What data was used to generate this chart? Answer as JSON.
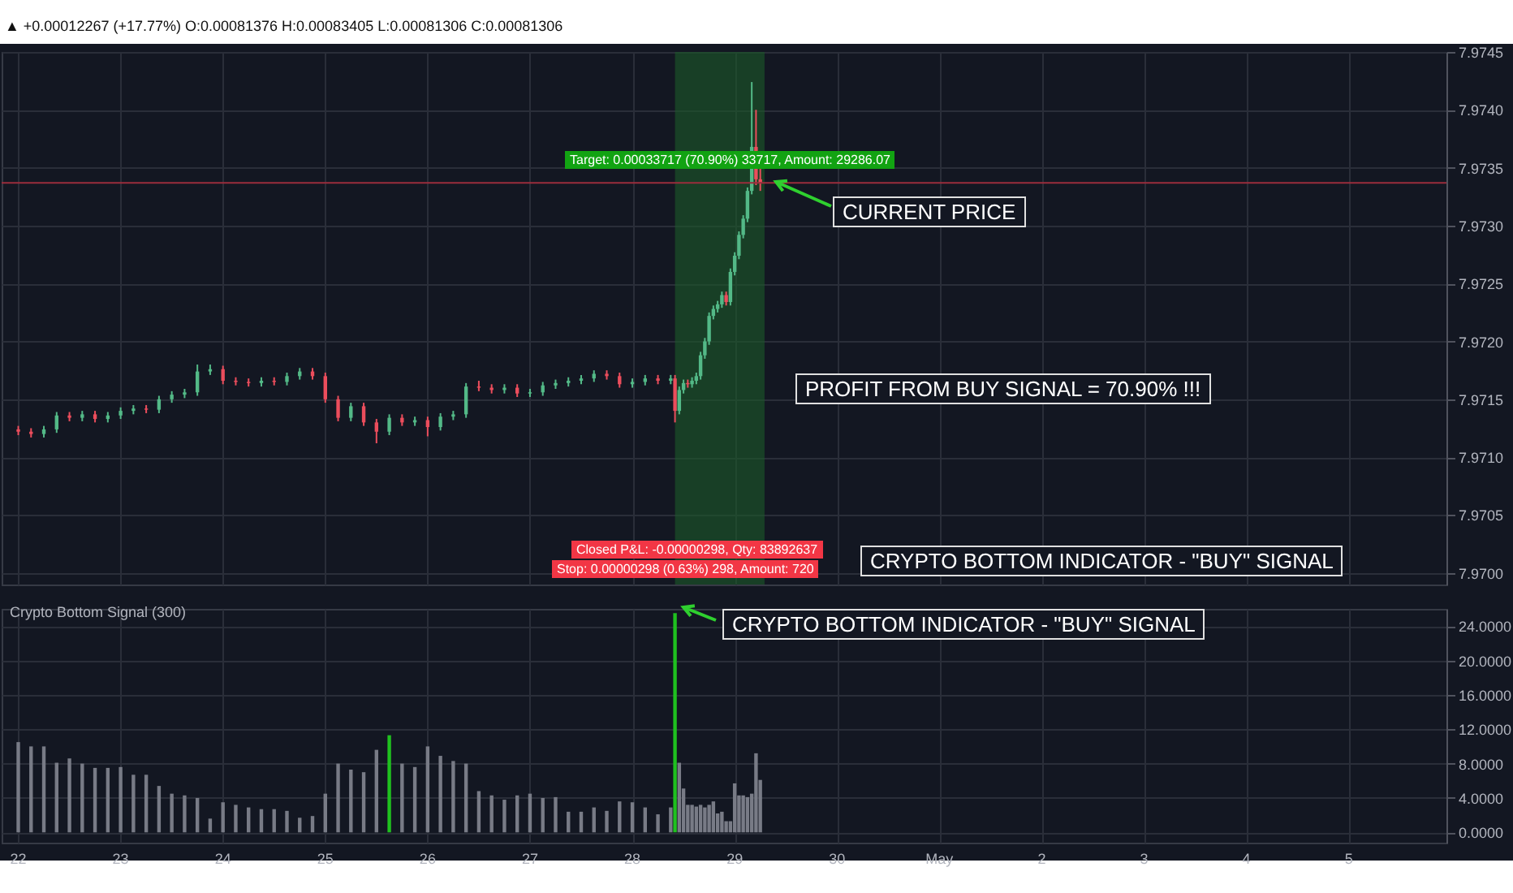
{
  "chart_data": [
    {
      "type": "candlestick",
      "subtitle": "▲ +0.00012267 (+17.77%) O:0.00081376 H:0.00083405 L:0.00081306 C:0.00081306",
      "x": [
        "--04-22T00:00",
        "--04-22T03:00",
        "--04-22T06:00",
        "--04-22T09:00",
        "--04-22T12:00",
        "--04-22T15:00",
        "--04-22T18:00",
        "--04-22T21:00",
        "--04-23T00:00",
        "--04-23T03:00",
        "--04-23T06:00",
        "--04-23T09:00",
        "--04-23T12:00",
        "--04-23T15:00",
        "--04-23T18:00",
        "--04-23T21:00",
        "--04-24T00:00",
        "--04-24T03:00",
        "--04-24T06:00",
        "--04-24T09:00",
        "--04-24T12:00",
        "--04-24T15:00",
        "--04-24T18:00",
        "--04-24T21:00",
        "--04-25T00:00",
        "--04-25T03:00",
        "--04-25T06:00",
        "--04-25T09:00",
        "--04-25T12:00",
        "--04-25T15:00",
        "--04-25T18:00",
        "--04-25T21:00",
        "--04-26T00:00",
        "--04-26T03:00",
        "--04-26T06:00",
        "--04-26T09:00",
        "--04-26T12:00",
        "--04-26T15:00",
        "--04-26T18:00",
        "--04-26T21:00",
        "--04-27T00:00",
        "--04-27T03:00",
        "--04-27T06:00",
        "--04-27T09:00",
        "--04-27T12:00",
        "--04-27T15:00",
        "--04-27T18:00",
        "--04-27T21:00",
        "--04-28T00:00",
        "--04-28T03:00",
        "--04-28T06:00",
        "--04-28T09:00",
        "--04-28T10:00",
        "--04-28T11:00",
        "--04-28T12:00",
        "--04-28T13:00",
        "--04-28T14:00",
        "--04-28T15:00",
        "--04-28T16:00",
        "--04-28T17:00",
        "--04-28T18:00",
        "--04-28T19:00",
        "--04-28T20:00",
        "--04-28T21:00",
        "--04-28T22:00",
        "--04-28T23:00",
        "--04-29T00:00",
        "--04-29T01:00",
        "--04-29T02:00",
        "--04-29T03:00",
        "--04-29T04:00",
        "--04-29T05:00",
        "--04-29T06:00"
      ],
      "ohlc": [
        [
          7.97124,
          7.97127,
          7.97119,
          7.97122
        ],
        [
          7.97122,
          7.97125,
          7.97117,
          7.9712
        ],
        [
          7.9712,
          7.97127,
          7.97117,
          7.97124
        ],
        [
          7.97124,
          7.97139,
          7.97121,
          7.97136
        ],
        [
          7.97136,
          7.97139,
          7.97131,
          7.97134
        ],
        [
          7.97134,
          7.9714,
          7.97131,
          7.97137
        ],
        [
          7.97137,
          7.9714,
          7.9713,
          7.97133
        ],
        [
          7.97133,
          7.97139,
          7.9713,
          7.97136
        ],
        [
          7.97136,
          7.97143,
          7.97133,
          7.9714
        ],
        [
          7.9714,
          7.97145,
          7.97137,
          7.97142
        ],
        [
          7.97142,
          7.97145,
          7.97138,
          7.97141
        ],
        [
          7.97141,
          7.97153,
          7.97138,
          7.9715
        ],
        [
          7.9715,
          7.97157,
          7.97147,
          7.97154
        ],
        [
          7.97154,
          7.97159,
          7.97151,
          7.97156
        ],
        [
          7.97156,
          7.9718,
          7.97153,
          7.97174
        ],
        [
          7.97174,
          7.9718,
          7.97171,
          7.97176
        ],
        [
          7.97176,
          7.97179,
          7.97163,
          7.97166
        ],
        [
          7.97166,
          7.97169,
          7.97162,
          7.97165
        ],
        [
          7.97165,
          7.97168,
          7.97161,
          7.97164
        ],
        [
          7.97164,
          7.97169,
          7.97161,
          7.97166
        ],
        [
          7.97166,
          7.97169,
          7.97162,
          7.97165
        ],
        [
          7.97165,
          7.97173,
          7.97162,
          7.9717
        ],
        [
          7.9717,
          7.97177,
          7.97167,
          7.97174
        ],
        [
          7.97174,
          7.97177,
          7.97167,
          7.9717
        ],
        [
          7.9717,
          7.97173,
          7.97147,
          7.9715
        ],
        [
          7.9715,
          7.97153,
          7.97131,
          7.97134
        ],
        [
          7.97134,
          7.97147,
          7.97131,
          7.97144
        ],
        [
          7.97144,
          7.97147,
          7.97127,
          7.9713
        ],
        [
          7.9713,
          7.97133,
          7.97112,
          7.97122
        ],
        [
          7.97122,
          7.97137,
          7.97119,
          7.97134
        ],
        [
          7.97134,
          7.97137,
          7.97127,
          7.9713
        ],
        [
          7.9713,
          7.97135,
          7.97127,
          7.97132
        ],
        [
          7.97132,
          7.97135,
          7.97118,
          7.97126
        ],
        [
          7.97126,
          7.97138,
          7.97123,
          7.97135
        ],
        [
          7.97135,
          7.9714,
          7.97132,
          7.97137
        ],
        [
          7.97137,
          7.97164,
          7.97134,
          7.97161
        ],
        [
          7.97161,
          7.97166,
          7.97157,
          7.9716
        ],
        [
          7.9716,
          7.97163,
          7.97155,
          7.97158
        ],
        [
          7.97158,
          7.97163,
          7.97155,
          7.9716
        ],
        [
          7.9716,
          7.97163,
          7.97152,
          7.97155
        ],
        [
          7.97155,
          7.97159,
          7.97152,
          7.97156
        ],
        [
          7.97156,
          7.97165,
          7.97153,
          7.97162
        ],
        [
          7.97162,
          7.97167,
          7.97159,
          7.97164
        ],
        [
          7.97164,
          7.97169,
          7.97161,
          7.97166
        ],
        [
          7.97166,
          7.97171,
          7.97163,
          7.97168
        ],
        [
          7.97168,
          7.97175,
          7.97165,
          7.97172
        ],
        [
          7.97172,
          7.97175,
          7.97167,
          7.9717
        ],
        [
          7.9717,
          7.97173,
          7.9716,
          7.97163
        ],
        [
          7.97163,
          7.97168,
          7.9716,
          7.97165
        ],
        [
          7.97165,
          7.97171,
          7.97162,
          7.97168
        ],
        [
          7.97168,
          7.97171,
          7.97163,
          7.97166
        ],
        [
          7.97166,
          7.97171,
          7.97163,
          7.97168
        ],
        [
          7.97168,
          7.97171,
          7.9713,
          7.9714
        ],
        [
          7.9714,
          7.97161,
          7.97137,
          7.97158
        ],
        [
          7.97158,
          7.97167,
          7.97155,
          7.97164
        ],
        [
          7.97164,
          7.97167,
          7.9716,
          7.97163
        ],
        [
          7.97163,
          7.97169,
          7.9716,
          7.97166
        ],
        [
          7.97166,
          7.97173,
          7.97163,
          7.9717
        ],
        [
          7.9717,
          7.97191,
          7.97167,
          7.97188
        ],
        [
          7.97188,
          7.97203,
          7.97185,
          7.972
        ],
        [
          7.972,
          7.97225,
          7.97197,
          7.97222
        ],
        [
          7.97222,
          7.97231,
          7.97219,
          7.97228
        ],
        [
          7.97228,
          7.97235,
          7.97225,
          7.97232
        ],
        [
          7.97232,
          7.97243,
          7.97229,
          7.9724
        ],
        [
          7.9724,
          7.97243,
          7.97231,
          7.97234
        ],
        [
          7.97234,
          7.97263,
          7.97231,
          7.9726
        ],
        [
          7.9726,
          7.97277,
          7.97257,
          7.97274
        ],
        [
          7.97274,
          7.97295,
          7.97271,
          7.97292
        ],
        [
          7.97292,
          7.97309,
          7.97289,
          7.97306
        ],
        [
          7.97306,
          7.97333,
          7.97303,
          7.9733
        ],
        [
          7.9733,
          7.97424,
          7.97327,
          7.97368
        ],
        [
          7.97368,
          7.974,
          7.97335,
          7.9734
        ],
        [
          7.9734,
          7.97352,
          7.9733,
          7.97337
        ]
      ],
      "colors": [
        "#eb4d5c",
        "#eb4d5c",
        "#53b987",
        "#53b987",
        "#eb4d5c",
        "#53b987",
        "#eb4d5c",
        "#53b987",
        "#53b987",
        "#53b987",
        "#eb4d5c",
        "#53b987",
        "#53b987",
        "#53b987",
        "#53b987",
        "#53b987",
        "#eb4d5c",
        "#eb4d5c",
        "#eb4d5c",
        "#53b987",
        "#eb4d5c",
        "#53b987",
        "#53b987",
        "#eb4d5c",
        "#eb4d5c",
        "#eb4d5c",
        "#53b987",
        "#eb4d5c",
        "#eb4d5c",
        "#53b987",
        "#eb4d5c",
        "#53b987",
        "#eb4d5c",
        "#53b987",
        "#53b987",
        "#53b987",
        "#eb4d5c",
        "#eb4d5c",
        "#53b987",
        "#eb4d5c",
        "#53b987",
        "#53b987",
        "#53b987",
        "#53b987",
        "#53b987",
        "#53b987",
        "#eb4d5c",
        "#eb4d5c",
        "#53b987",
        "#53b987",
        "#eb4d5c",
        "#53b987",
        "#eb4d5c",
        "#53b987",
        "#53b987",
        "#eb4d5c",
        "#53b987",
        "#53b987",
        "#53b987",
        "#53b987",
        "#53b987",
        "#53b987",
        "#53b987",
        "#53b987",
        "#eb4d5c",
        "#53b987",
        "#53b987",
        "#53b987",
        "#53b987",
        "#53b987",
        "#53b987",
        "#eb4d5c",
        "#eb4d5c"
      ],
      "xlim": [
        "--04-21T22:00",
        "--05-05T21:00"
      ],
      "xticks": [
        {
          "value": "--04-22",
          "label": "22"
        },
        {
          "value": "--04-23",
          "label": "23"
        },
        {
          "value": "--04-24",
          "label": "24"
        },
        {
          "value": "--04-25",
          "label": "25"
        },
        {
          "value": "--04-26",
          "label": "26"
        },
        {
          "value": "--04-27",
          "label": "27"
        },
        {
          "value": "--04-28",
          "label": "28"
        },
        {
          "value": "--04-29",
          "label": "29"
        },
        {
          "value": "--04-30",
          "label": "30"
        },
        {
          "value": "--05-01",
          "label": "May"
        },
        {
          "value": "--05-02",
          "label": "2"
        },
        {
          "value": "--05-03",
          "label": "3"
        },
        {
          "value": "--05-04",
          "label": "4"
        },
        {
          "value": "--05-05",
          "label": "5"
        }
      ],
      "ylim": [
        7.9699,
        7.9745
      ],
      "yticks": [
        {
          "value": 7.97,
          "label": "7.9700"
        },
        {
          "value": 7.9705,
          "label": "7.9705"
        },
        {
          "value": 7.971,
          "label": "7.9710"
        },
        {
          "value": 7.9715,
          "label": "7.9715"
        },
        {
          "value": 7.972,
          "label": "7.9720"
        },
        {
          "value": 7.9725,
          "label": "7.9725"
        },
        {
          "value": 7.973,
          "label": "7.9730"
        },
        {
          "value": 7.9735,
          "label": "7.9735"
        },
        {
          "value": 7.974,
          "label": "7.9740"
        },
        {
          "value": 7.9745,
          "label": "7.9745"
        }
      ],
      "grid": true,
      "tick_labels": "y",
      "bands": [
        {
          "axis": "x",
          "from": "--04-28T10:00",
          "to": "--04-29T07:00",
          "color": "#1d5a2a"
        }
      ],
      "ref_lines": [
        {
          "axis": "y",
          "value": 7.97337,
          "color": "#9b2d3c"
        }
      ],
      "annotations": [
        "Target: 0.00033717 (70.90%) 33717, Amount: 29286.07",
        "CURRENT PRICE",
        "PROFIT FROM BUY SIGNAL = 70.90% !!!",
        "Closed P&L: -0.00000298, Qty: 83892637",
        "Stop: 0.00000298 (0.63%) 298, Amount: 720",
        "CRYPTO BOTTOM INDICATOR - \"BUY\" SIGNAL"
      ]
    },
    {
      "type": "bar",
      "title": "Crypto Bottom Signal (300)",
      "x": [
        "--04-22T00:00",
        "--04-22T03:00",
        "--04-22T06:00",
        "--04-22T09:00",
        "--04-22T12:00",
        "--04-22T15:00",
        "--04-22T18:00",
        "--04-22T21:00",
        "--04-23T00:00",
        "--04-23T03:00",
        "--04-23T06:00",
        "--04-23T09:00",
        "--04-23T12:00",
        "--04-23T15:00",
        "--04-23T18:00",
        "--04-23T21:00",
        "--04-24T00:00",
        "--04-24T03:00",
        "--04-24T06:00",
        "--04-24T09:00",
        "--04-24T12:00",
        "--04-24T15:00",
        "--04-24T18:00",
        "--04-24T21:00",
        "--04-25T00:00",
        "--04-25T03:00",
        "--04-25T06:00",
        "--04-25T09:00",
        "--04-25T12:00",
        "--04-25T15:00",
        "--04-25T18:00",
        "--04-25T21:00",
        "--04-26T00:00",
        "--04-26T03:00",
        "--04-26T06:00",
        "--04-26T09:00",
        "--04-26T12:00",
        "--04-26T15:00",
        "--04-26T18:00",
        "--04-26T21:00",
        "--04-27T00:00",
        "--04-27T03:00",
        "--04-27T06:00",
        "--04-27T09:00",
        "--04-27T12:00",
        "--04-27T15:00",
        "--04-27T18:00",
        "--04-27T21:00",
        "--04-28T00:00",
        "--04-28T03:00",
        "--04-28T06:00",
        "--04-28T09:00",
        "--04-28T10:00",
        "--04-28T11:00",
        "--04-28T12:00",
        "--04-28T13:00",
        "--04-28T14:00",
        "--04-28T15:00",
        "--04-28T16:00",
        "--04-28T17:00",
        "--04-28T18:00",
        "--04-28T19:00",
        "--04-28T20:00",
        "--04-28T21:00",
        "--04-28T22:00",
        "--04-28T23:00",
        "--04-29T00:00",
        "--04-29T01:00",
        "--04-29T02:00",
        "--04-29T03:00",
        "--04-29T04:00",
        "--04-29T05:00",
        "--04-29T06:00"
      ],
      "values": [
        10.5,
        10.0,
        10.0,
        8.1,
        8.6,
        8.0,
        7.5,
        7.5,
        7.6,
        6.7,
        6.7,
        5.4,
        4.5,
        4.3,
        4.0,
        1.6,
        3.5,
        3.2,
        2.9,
        2.7,
        2.7,
        2.5,
        1.7,
        1.9,
        4.5,
        8.0,
        7.3,
        7.0,
        9.6,
        11.3,
        8.0,
        7.6,
        10.0,
        8.9,
        8.3,
        8.0,
        4.8,
        4.3,
        3.8,
        4.3,
        4.5,
        4.0,
        4.1,
        2.4,
        2.4,
        2.9,
        2.5,
        3.6,
        3.5,
        2.9,
        2.1,
        2.9,
        25.5,
        8.1,
        5.1,
        3.2,
        3.2,
        3.0,
        3.2,
        2.9,
        3.2,
        3.6,
        2.2,
        2.4,
        1.3,
        1.3,
        5.7,
        4.3,
        4.3,
        4.1,
        4.5,
        9.2,
        6.1
      ],
      "colors": [
        "#787b86",
        "#787b86",
        "#787b86",
        "#787b86",
        "#787b86",
        "#787b86",
        "#787b86",
        "#787b86",
        "#787b86",
        "#787b86",
        "#787b86",
        "#787b86",
        "#787b86",
        "#787b86",
        "#787b86",
        "#787b86",
        "#787b86",
        "#787b86",
        "#787b86",
        "#787b86",
        "#787b86",
        "#787b86",
        "#787b86",
        "#787b86",
        "#787b86",
        "#787b86",
        "#787b86",
        "#787b86",
        "#787b86",
        "#1fc11f",
        "#787b86",
        "#787b86",
        "#787b86",
        "#787b86",
        "#787b86",
        "#787b86",
        "#787b86",
        "#787b86",
        "#787b86",
        "#787b86",
        "#787b86",
        "#787b86",
        "#787b86",
        "#787b86",
        "#787b86",
        "#787b86",
        "#787b86",
        "#787b86",
        "#787b86",
        "#787b86",
        "#787b86",
        "#787b86",
        "#1fc11f",
        "#787b86",
        "#787b86",
        "#787b86",
        "#787b86",
        "#787b86",
        "#787b86",
        "#787b86",
        "#787b86",
        "#787b86",
        "#787b86",
        "#787b86",
        "#787b86",
        "#787b86",
        "#787b86",
        "#787b86",
        "#787b86",
        "#787b86",
        "#787b86",
        "#787b86",
        "#787b86"
      ],
      "xlim": [
        "--04-21T22:00",
        "--05-05T21:00"
      ],
      "xticks": [
        {
          "value": "--04-22",
          "label": "22"
        },
        {
          "value": "--04-23",
          "label": "23"
        },
        {
          "value": "--04-24",
          "label": "24"
        },
        {
          "value": "--04-25",
          "label": "25"
        },
        {
          "value": "--04-26",
          "label": "26"
        },
        {
          "value": "--04-27",
          "label": "27"
        },
        {
          "value": "--04-28",
          "label": "28"
        },
        {
          "value": "--04-29",
          "label": "29"
        },
        {
          "value": "--04-30",
          "label": "30"
        },
        {
          "value": "--05-01",
          "label": "May"
        },
        {
          "value": "--05-02",
          "label": "2"
        },
        {
          "value": "--05-03",
          "label": "3"
        },
        {
          "value": "--05-04",
          "label": "4"
        },
        {
          "value": "--05-05",
          "label": "5"
        }
      ],
      "ylim": [
        -1.2,
        26
      ],
      "yticks": [
        {
          "value": 0,
          "label": "0.0000"
        },
        {
          "value": 4,
          "label": "4.0000"
        },
        {
          "value": 8,
          "label": "8.0000"
        },
        {
          "value": 12,
          "label": "12.0000"
        },
        {
          "value": 16,
          "label": "16.0000"
        },
        {
          "value": 20,
          "label": "20.0000"
        },
        {
          "value": 24,
          "label": "24.0000"
        }
      ],
      "grid": true,
      "annotations": [
        "CRYPTO BOTTOM INDICATOR - \"BUY\" SIGNAL"
      ]
    }
  ]
}
